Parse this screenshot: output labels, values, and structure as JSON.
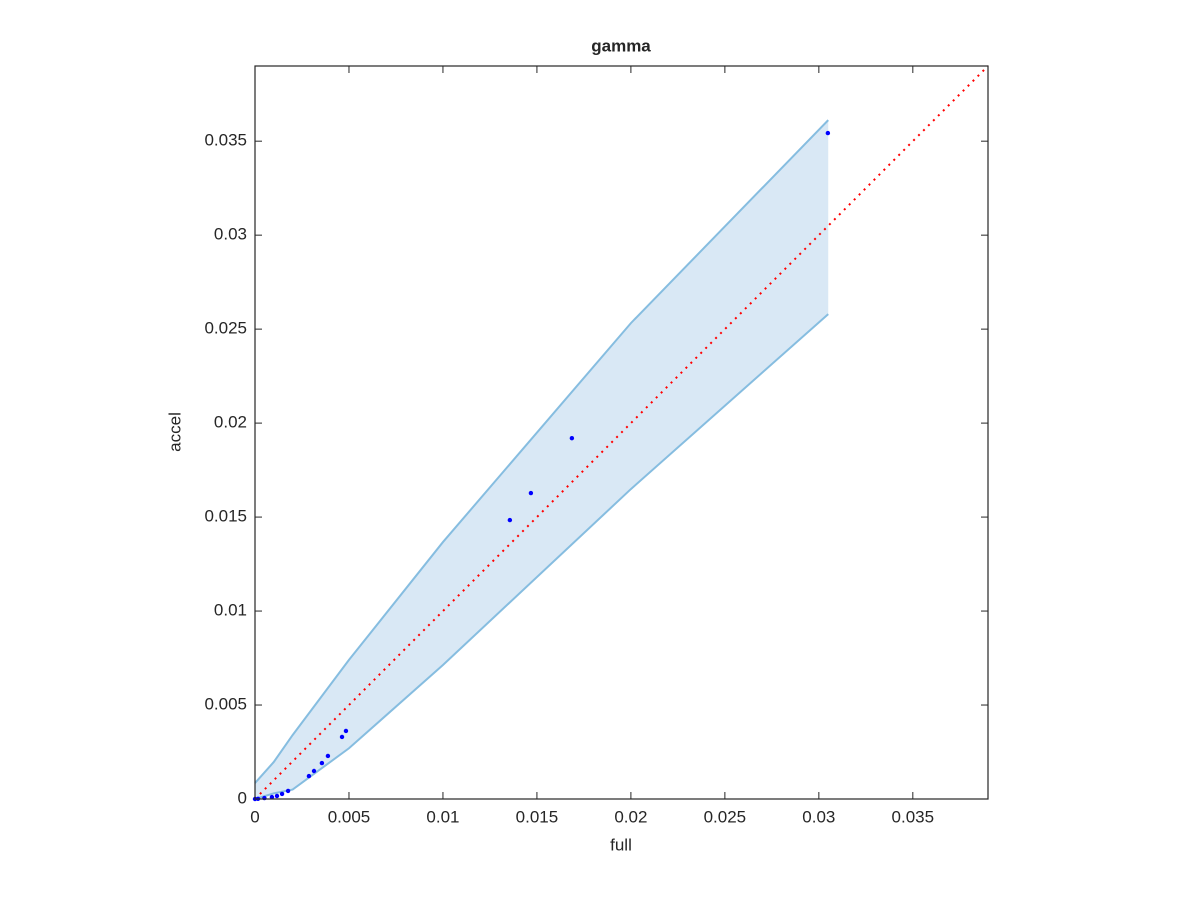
{
  "chart_data": {
    "type": "scatter",
    "title": "gamma",
    "x_label": "full",
    "y_label": "accel",
    "xlim": [
      0,
      0.039
    ],
    "ylim": [
      0,
      0.039
    ],
    "xticks": [
      0,
      0.005,
      0.01,
      0.015,
      0.02,
      0.025,
      0.03,
      0.035
    ],
    "yticks": [
      0,
      0.005,
      0.01,
      0.015,
      0.02,
      0.025,
      0.03,
      0.035
    ],
    "grid": false,
    "band": {
      "color": "#86bde0",
      "fill": "#d9e8f5",
      "x": [
        0,
        0.001,
        0.002,
        0.005,
        0.01,
        0.02,
        0.0305
      ],
      "upper": [
        0.00085,
        0.00197,
        0.0034,
        0.0074,
        0.01367,
        0.02532,
        0.03612
      ],
      "lower": [
        0,
        0.0003,
        0.0005,
        0.0027,
        0.00713,
        0.01649,
        0.0258
      ]
    },
    "reference": {
      "color": "#ff0000",
      "x": [
        0,
        0.039
      ],
      "y": [
        0,
        0.039
      ]
    },
    "series": [
      {
        "color": "#0000ff",
        "x": [
          0.03048,
          0.01686,
          0.01468,
          0.01356,
          0.00484,
          0.00463,
          0.00388,
          0.00356,
          0.00314,
          0.00287,
          0.00176,
          0.00144,
          0.00117,
          0.0009,
          0.0005,
          0.00016,
          0
        ],
        "values": [
          0.03543,
          0.0192,
          0.01628,
          0.01484,
          0.00362,
          0.0033,
          0.00229,
          0.00191,
          0.00149,
          0.00122,
          0.00043,
          0.00027,
          0.00016,
          0.0001,
          5e-05,
          1e-05,
          0
        ]
      }
    ]
  }
}
